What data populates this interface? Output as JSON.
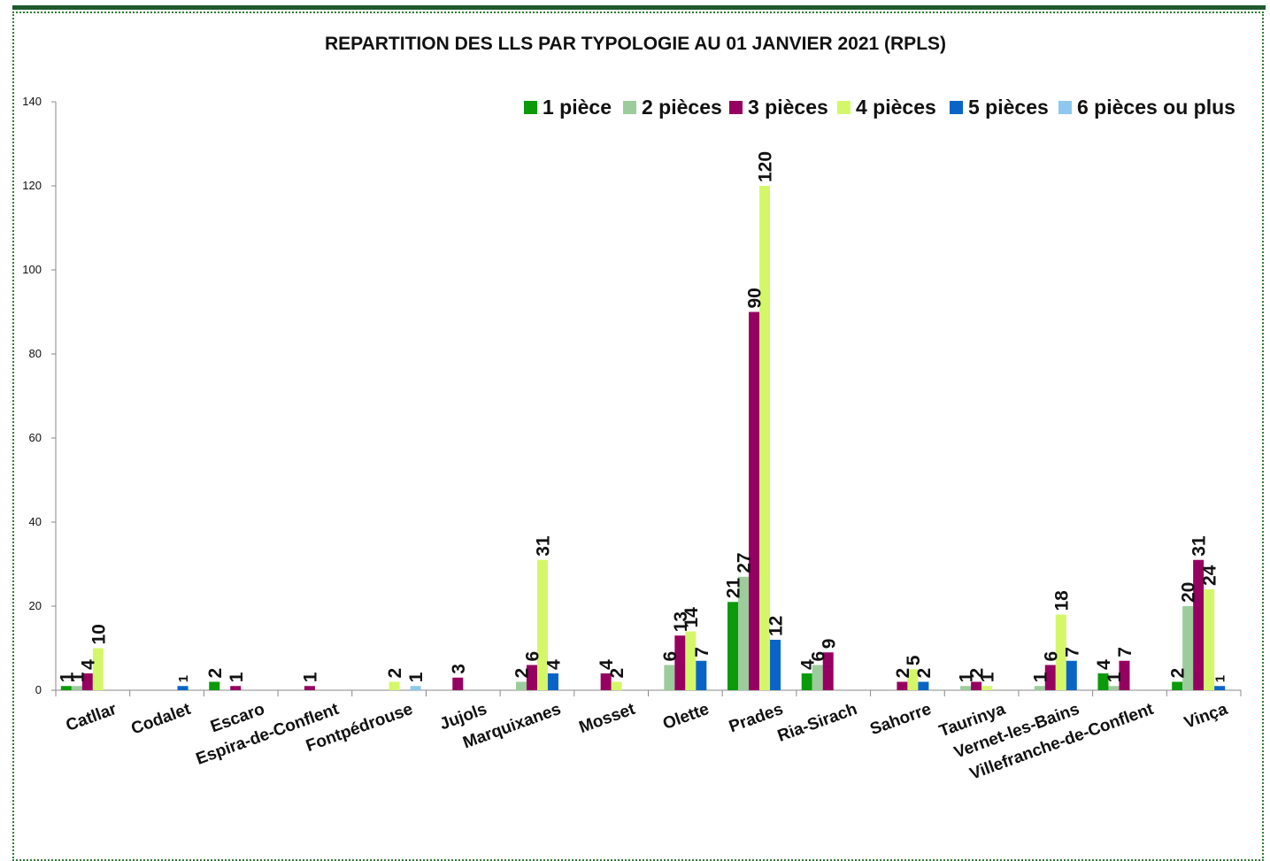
{
  "chart_data": {
    "type": "bar",
    "title": "REPARTITION DES LLS PAR TYPOLOGIE AU 01 JANVIER 2021 (RPLS)",
    "xlabel": "",
    "ylabel": "",
    "ylim": [
      0,
      140
    ],
    "yticks": [
      0,
      20,
      40,
      60,
      80,
      100,
      120,
      140
    ],
    "grid": false,
    "legend_position": "top-right",
    "categories": [
      "Catllar",
      "Codalet",
      "Escaro",
      "Espira-de-Conflent",
      "Fontpédrouse",
      "Jujols",
      "Marquixanes",
      "Mosset",
      "Olette",
      "Prades",
      "Ria-Sirach",
      "Sahorre",
      "Taurinya",
      "Vernet-les-Bains",
      "Villefranche-de-Conflent",
      "Vinça"
    ],
    "series": [
      {
        "name": "1 pièce",
        "color": "#0a9a0a",
        "values": [
          1,
          null,
          2,
          null,
          null,
          null,
          null,
          null,
          null,
          21,
          4,
          null,
          null,
          null,
          4,
          2
        ]
      },
      {
        "name": "2 pièces",
        "color": "#9ccc9c",
        "values": [
          1,
          null,
          null,
          null,
          null,
          null,
          2,
          null,
          6,
          27,
          6,
          null,
          1,
          1,
          1,
          20
        ]
      },
      {
        "name": "3 pièces",
        "color": "#960060",
        "values": [
          4,
          null,
          1,
          1,
          null,
          3,
          6,
          4,
          13,
          90,
          9,
          2,
          2,
          6,
          7,
          31
        ]
      },
      {
        "name": "4 pièces",
        "color": "#d4f76a",
        "values": [
          10,
          null,
          null,
          null,
          2,
          null,
          31,
          2,
          14,
          null,
          null,
          5,
          1,
          18,
          null,
          24
        ]
      },
      {
        "name": "5 pièces",
        "color": "#0a64c8",
        "values": [
          null,
          1,
          null,
          null,
          null,
          null,
          4,
          null,
          7,
          12,
          null,
          2,
          null,
          7,
          null,
          1
        ]
      },
      {
        "name": "6 pièces ou plus",
        "color": "#8ec8ee",
        "values": [
          null,
          null,
          null,
          null,
          1,
          null,
          null,
          null,
          null,
          null,
          null,
          null,
          null,
          null,
          null,
          null
        ]
      }
    ],
    "prades_4_pieces": 120
  }
}
